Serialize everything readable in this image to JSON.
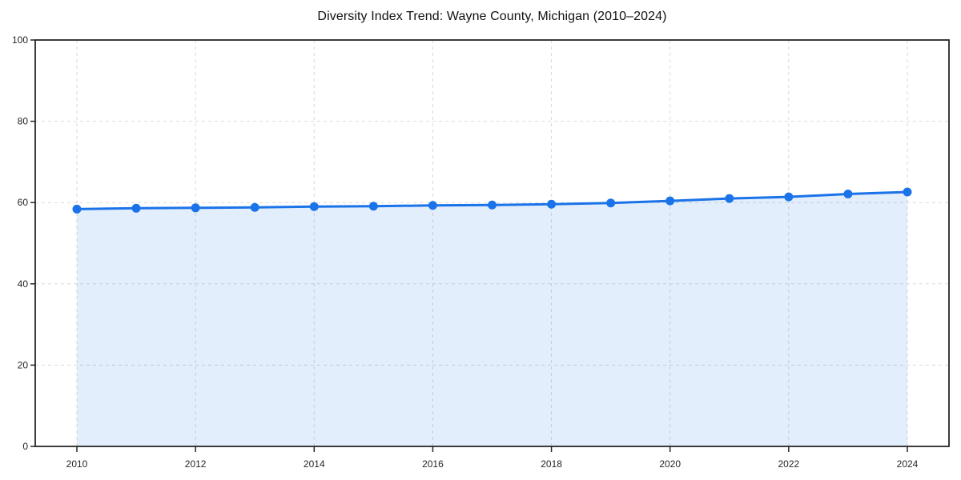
{
  "chart_data": {
    "type": "line",
    "title": "Diversity Index Trend: Wayne County, Michigan (2010–2024)",
    "x": [
      2010,
      2011,
      2012,
      2013,
      2014,
      2015,
      2016,
      2017,
      2018,
      2019,
      2020,
      2021,
      2022,
      2023,
      2024
    ],
    "values": [
      58.4,
      58.6,
      58.7,
      58.8,
      59.0,
      59.1,
      59.3,
      59.4,
      59.6,
      59.9,
      60.4,
      61.0,
      61.4,
      62.1,
      62.6
    ],
    "xlabel": "",
    "ylabel": "",
    "ylim": [
      0,
      100
    ],
    "yticks": [
      0,
      20,
      40,
      60,
      80,
      100
    ],
    "xticks": [
      2010,
      2012,
      2014,
      2016,
      2018,
      2020,
      2022,
      2024
    ],
    "grid": "dashed",
    "legend": "none",
    "area_fill": true,
    "colors": {
      "line": "#1a73e8",
      "marker": "#1a73e8",
      "fill": "#1a73e8",
      "fill_opacity": "0.12",
      "grid": "#d9d9d9",
      "axis": "#262626",
      "tick_text": "#262626",
      "background": "#ffffff"
    }
  }
}
